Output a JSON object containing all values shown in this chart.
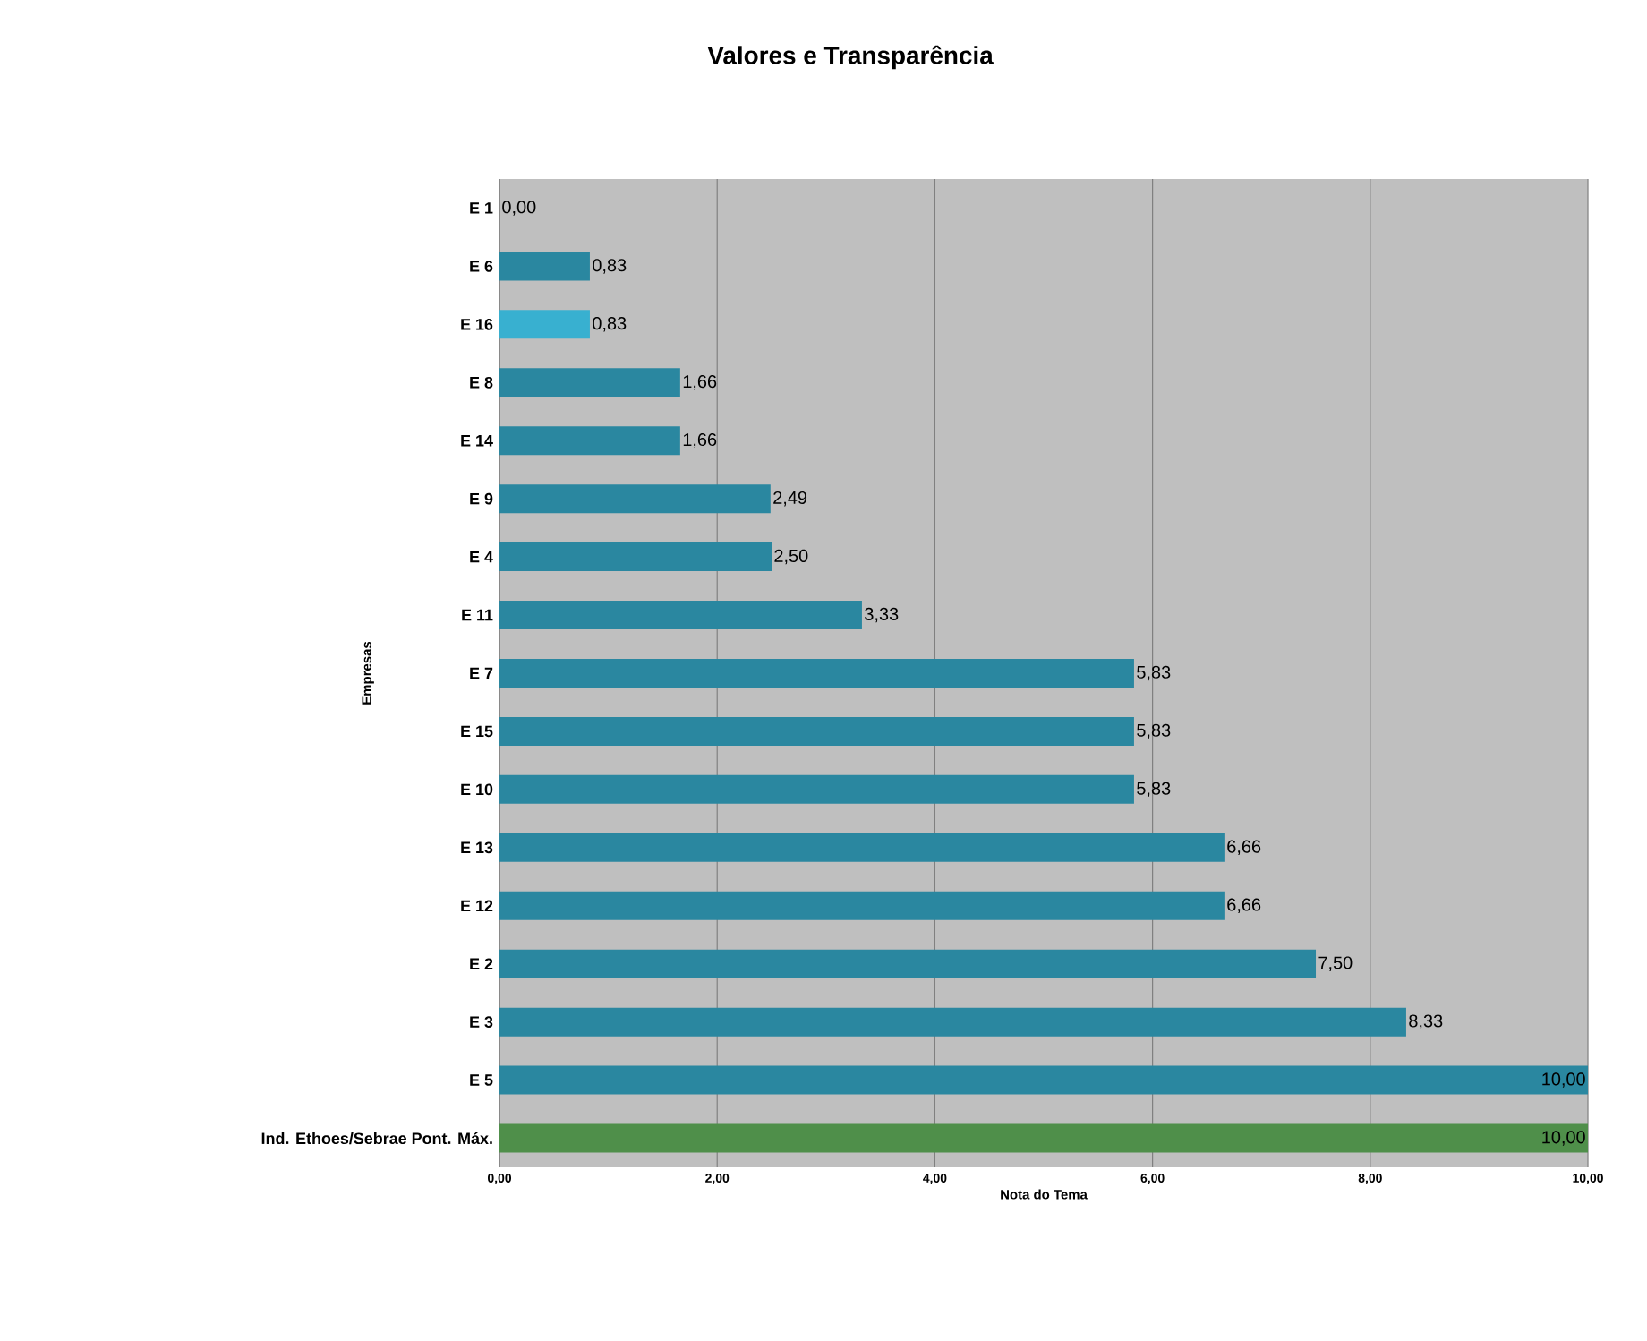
{
  "chart_data": {
    "type": "bar",
    "orientation": "horizontal",
    "title": "Valores e Transparência",
    "xlabel": "Nota do Tema",
    "ylabel": "Empresas",
    "categories": [
      "E 1",
      "E 6",
      "E 16",
      "E 8",
      "E 14",
      "E 9",
      "E 4",
      "E 11",
      "E 7",
      "E 15",
      "E 10",
      "E 13",
      "E 12",
      "E 2",
      "E 3",
      "E 5",
      "Ind. Ethoes/Sebrae Pont. Máx."
    ],
    "values": [
      0,
      0.83,
      0.83,
      1.66,
      1.66,
      2.49,
      2.5,
      3.33,
      5.83,
      5.83,
      5.83,
      6.66,
      6.66,
      7.5,
      8.33,
      10,
      10
    ],
    "value_labels": [
      "0,00",
      "0,83",
      "0,83",
      "1,66",
      "1,66",
      "2,49",
      "2,50",
      "3,33",
      "5,83",
      "5,83",
      "5,83",
      "6,66",
      "6,66",
      "7,50",
      "8,33",
      "10,00",
      "10,00"
    ],
    "colors": [
      "#2a87a0",
      "#2a87a0",
      "#38b0d0",
      "#2a87a0",
      "#2a87a0",
      "#2a87a0",
      "#2a87a0",
      "#2a87a0",
      "#2a87a0",
      "#2a87a0",
      "#2a87a0",
      "#2a87a0",
      "#2a87a0",
      "#2a87a0",
      "#2a87a0",
      "#2a87a0",
      "#4f8f4a"
    ],
    "xlim": [
      0,
      10
    ],
    "xticks": [
      {
        "value": 0,
        "label": "0,00"
      },
      {
        "value": 2,
        "label": "2,00"
      },
      {
        "value": 4,
        "label": "4,00"
      },
      {
        "value": 6,
        "label": "6,00"
      },
      {
        "value": 8,
        "label": "8,00"
      },
      {
        "value": 10,
        "label": "10,00"
      }
    ],
    "grid": "x"
  }
}
